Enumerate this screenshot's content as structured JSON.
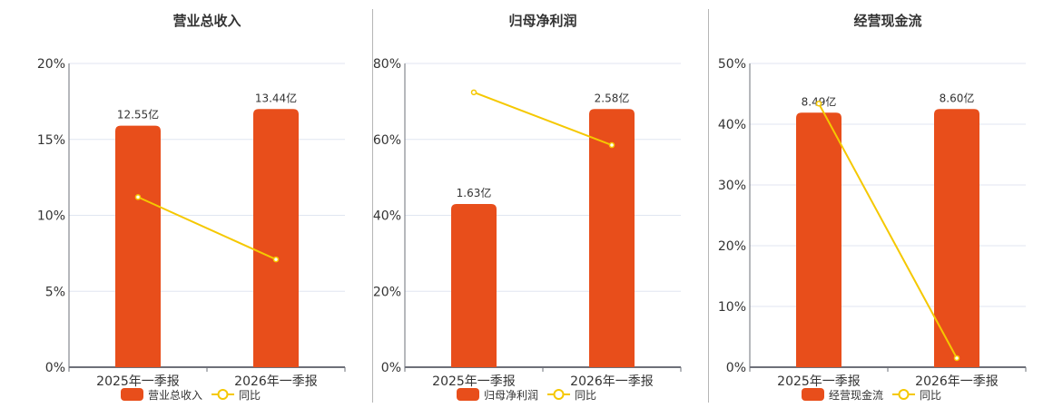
{
  "colors": {
    "bar": "#E84E1B",
    "line": "#F5C800",
    "grid": "#E0E6F1",
    "axis": "#6E7079",
    "text": "#333333",
    "separator": "#B5B5B5"
  },
  "chart_data": [
    {
      "type": "bar+line",
      "title": "营业总收入",
      "categories": [
        "2025年一季报",
        "2026年一季报"
      ],
      "series": [
        {
          "name": "营业总收入",
          "type": "bar",
          "labels": [
            "12.55亿",
            "13.44亿"
          ],
          "values": [
            15.9,
            17.0
          ]
        },
        {
          "name": "同比",
          "type": "line",
          "values": [
            11.2,
            7.1
          ]
        }
      ],
      "yticks": [
        "0%",
        "5%",
        "10%",
        "15%",
        "20%"
      ],
      "ylim": [
        0,
        20
      ],
      "ylabel": "",
      "xlabel": "",
      "grid": true,
      "legend_position": "bottom"
    },
    {
      "type": "bar+line",
      "title": "归母净利润",
      "categories": [
        "2025年一季报",
        "2026年一季报"
      ],
      "series": [
        {
          "name": "归母净利润",
          "type": "bar",
          "labels": [
            "1.63亿",
            "2.58亿"
          ],
          "values": [
            43.0,
            68.0
          ]
        },
        {
          "name": "同比",
          "type": "line",
          "values": [
            72.4,
            58.5
          ]
        }
      ],
      "yticks": [
        "0%",
        "20%",
        "40%",
        "60%",
        "80%"
      ],
      "ylim": [
        0,
        80
      ],
      "ylabel": "",
      "xlabel": "",
      "grid": true,
      "legend_position": "bottom"
    },
    {
      "type": "bar+line",
      "title": "经营现金流",
      "categories": [
        "2025年一季报",
        "2026年一季报"
      ],
      "series": [
        {
          "name": "经营现金流",
          "type": "bar",
          "labels": [
            "8.49亿",
            "8.60亿"
          ],
          "values": [
            41.9,
            42.5
          ]
        },
        {
          "name": "同比",
          "type": "line",
          "values": [
            43.4,
            1.5
          ]
        }
      ],
      "yticks": [
        "0%",
        "10%",
        "20%",
        "30%",
        "40%",
        "50%"
      ],
      "ylim": [
        0,
        50
      ],
      "ylabel": "",
      "xlabel": "",
      "grid": true,
      "legend_position": "bottom"
    }
  ]
}
